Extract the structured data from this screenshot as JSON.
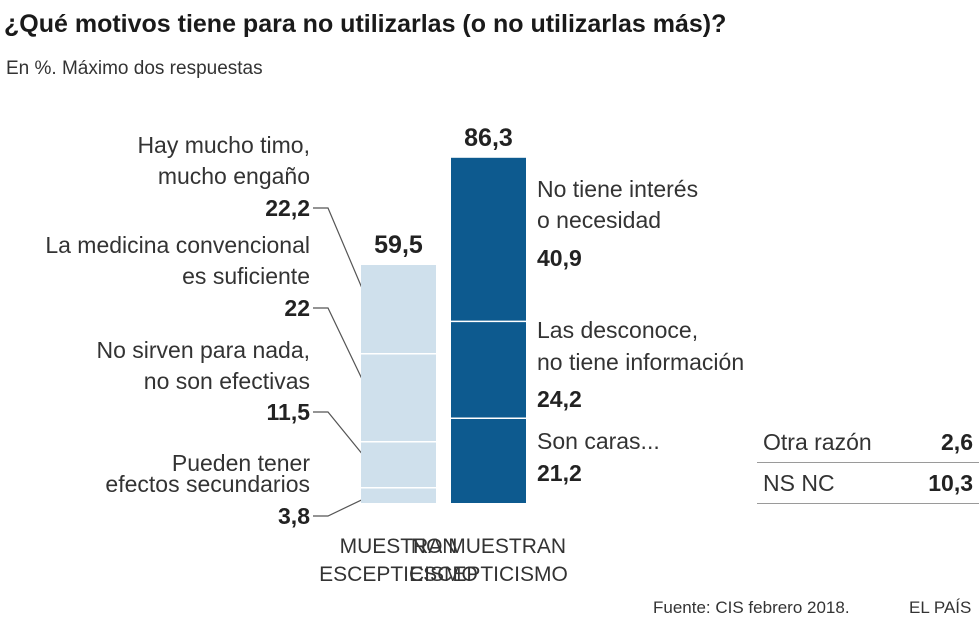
{
  "title": "¿Qué motivos tiene para no utilizarlas (o no utilizarlas más)?",
  "subtitle": "En %. Máximo dos respuestas",
  "colors": {
    "skeptic": "#cfe0ec",
    "non_skeptic": "#0d5a8f",
    "divider": "#ffffff"
  },
  "chart_data": {
    "type": "bar",
    "stacked": true,
    "unit": "%",
    "ylim": [
      0,
      100
    ],
    "categories": [
      "MUESTRAN ESCEPTICISMO",
      "NO MUESTRAN ESCEPTICISMO"
    ],
    "bars": [
      {
        "category_line1": "MUESTRAN",
        "category_line2": "ESCEPTICISMO",
        "total": 59.5,
        "total_label": "59,5",
        "segments": [
          {
            "line1": "Pueden tener",
            "line2": "efectos secundarios",
            "value": 3.8,
            "value_label": "3,8"
          },
          {
            "line1": "No sirven para nada,",
            "line2": "no son efectivas",
            "value": 11.5,
            "value_label": "11,5"
          },
          {
            "line1": "La medicina convencional",
            "line2": "es suficiente",
            "value": 22,
            "value_label": "22"
          },
          {
            "line1": "Hay mucho timo,",
            "line2": "mucho engaño",
            "value": 22.2,
            "value_label": "22,2"
          }
        ]
      },
      {
        "category_line1": "NO MUESTRAN",
        "category_line2": "ESCEPTICISMO",
        "total": 86.3,
        "total_label": "86,3",
        "segments": [
          {
            "line1": "Son caras...",
            "line2": "",
            "value": 21.2,
            "value_label": "21,2"
          },
          {
            "line1": "Las desconoce,",
            "line2": "no tiene información",
            "value": 24.2,
            "value_label": "24,2"
          },
          {
            "line1": "No tiene interés",
            "line2": "o necesidad",
            "value": 40.9,
            "value_label": "40,9"
          }
        ]
      }
    ],
    "other": [
      {
        "label": "Otra razón",
        "value": 2.6,
        "value_label": "2,6"
      },
      {
        "label": "NS NC",
        "value": 10.3,
        "value_label": "10,3"
      }
    ]
  },
  "footer": {
    "source": "Fuente: CIS febrero 2018.",
    "brand": "EL PAÍS"
  }
}
